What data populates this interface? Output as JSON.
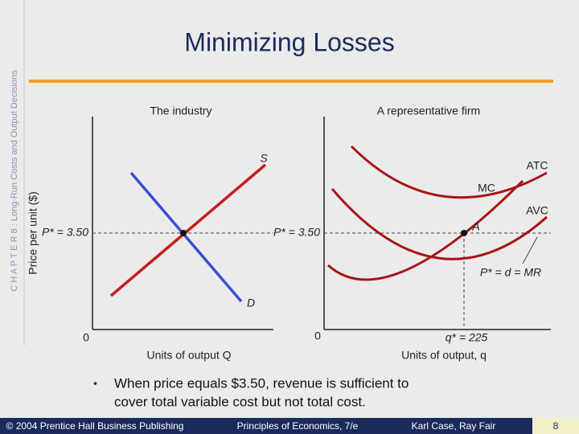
{
  "sidebar": "C H A P T E R 8 : Long-Run Costs and Output Decisions",
  "title": "Minimizing Losses",
  "y_axis_label": "Price per unit ($)",
  "industry": {
    "title": "The industry",
    "supply_label": "S",
    "demand_label": "D",
    "price_label": "P* = 3.50",
    "origin": "0",
    "x_axis_label": "Units of output  Q"
  },
  "firm": {
    "title": "A representative firm",
    "atc_label": "ATC",
    "mc_label": "MC",
    "avc_label": "AVC",
    "point_label": "A",
    "price_label": "P* = 3.50",
    "mr_label": "P* = d = MR",
    "origin": "0",
    "quantity_label": "q* = 225",
    "x_axis_label": "Units of output, q"
  },
  "bullet": {
    "lines": [
      "When price equals $3.50, revenue is sufficient to",
      "cover total variable cost but not total cost."
    ]
  },
  "footer": {
    "copyright": "© 2004 Prentice Hall Business Publishing",
    "book": "Principles of Economics, 7/e",
    "authors": "Karl Case, Ray Fair",
    "page": "8"
  }
}
